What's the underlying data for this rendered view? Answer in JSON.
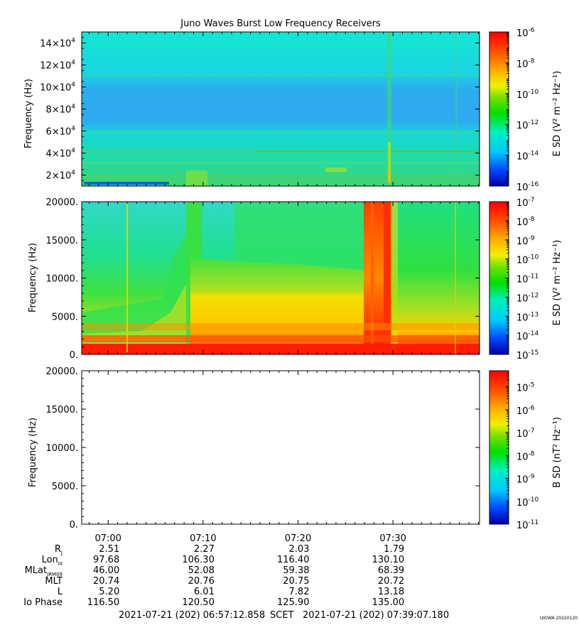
{
  "title": "Juno Waves Burst Low Frequency Receivers",
  "chart_data": [
    {
      "type": "heatmap",
      "panel": "top",
      "ylabel": "Frequency (Hz)",
      "ylim": [
        10000,
        150000
      ],
      "y_ticks": [
        {
          "value": 20000,
          "mant": "2",
          "exp": "4"
        },
        {
          "value": 40000,
          "mant": "4",
          "exp": "4"
        },
        {
          "value": 60000,
          "mant": "6",
          "exp": "4"
        },
        {
          "value": 80000,
          "mant": "8",
          "exp": "4"
        },
        {
          "value": 100000,
          "mant": "10",
          "exp": "4"
        },
        {
          "value": 120000,
          "mant": "12",
          "exp": "4"
        },
        {
          "value": 140000,
          "mant": "14",
          "exp": "4"
        }
      ],
      "colorbar": {
        "label": "E SD (V² m⁻² Hz⁻¹)",
        "scale": "log",
        "range_exp": [
          -16,
          -6
        ],
        "ticks": [
          -6,
          -8,
          -10,
          -12,
          -14,
          -16
        ]
      }
    },
    {
      "type": "heatmap",
      "panel": "middle",
      "ylabel": "Frequency (Hz)",
      "ylim": [
        0,
        20000
      ],
      "y_ticks": [
        "0.",
        "5000.",
        "10000.",
        "15000.",
        "20000."
      ],
      "colorbar": {
        "label": "E SD (V² m⁻² Hz⁻¹)",
        "scale": "log",
        "range_exp": [
          -15,
          -7
        ],
        "ticks": [
          -7,
          -8,
          -9,
          -10,
          -11,
          -12,
          -13,
          -14,
          -15
        ]
      }
    },
    {
      "type": "heatmap",
      "panel": "bottom",
      "ylabel": "Frequency (Hz)",
      "ylim": [
        0,
        20000
      ],
      "y_ticks": [
        "0.",
        "5000.",
        "10000.",
        "15000.",
        "20000."
      ],
      "colorbar": {
        "label": "B SD (nT² Hz⁻¹)",
        "scale": "log",
        "range_exp": [
          -11,
          -4.3
        ],
        "ticks": [
          -5,
          -6,
          -7,
          -8,
          -9,
          -10,
          -11
        ]
      }
    }
  ],
  "time_axis": {
    "start": "06:57:12.858",
    "end": "07:39:07.180",
    "major_labels": [
      "07:00",
      "07:10",
      "07:20",
      "07:30"
    ]
  },
  "ephemeris": {
    "rows": [
      {
        "label": "R",
        "sub": "J",
        "values": [
          "2.51",
          "2.27",
          "2.03",
          "1.79"
        ]
      },
      {
        "label": "Lon",
        "sub": "III",
        "values": [
          "97.68",
          "106.30",
          "116.40",
          "130.10"
        ]
      },
      {
        "label": "MLat",
        "sub": "JRM09",
        "values": [
          "46.00",
          "52.08",
          "59.38",
          "68.39"
        ]
      },
      {
        "label": "MLT",
        "sub": "",
        "values": [
          "20.74",
          "20.76",
          "20.75",
          "20.72"
        ]
      },
      {
        "label": "L",
        "sub": "",
        "values": [
          "5.20",
          "6.01",
          "7.82",
          "13.18"
        ]
      },
      {
        "label": "Io Phase",
        "sub": "",
        "values": [
          "116.50",
          "120.50",
          "125.90",
          "135.00"
        ]
      }
    ]
  },
  "footer": {
    "start_text": "2021-07-21 (202) 06:57:12.858",
    "scet": "SCET",
    "end_text": "2021-07-21 (202) 07:39:07.180",
    "stamp": "UIOWA 20220120"
  }
}
